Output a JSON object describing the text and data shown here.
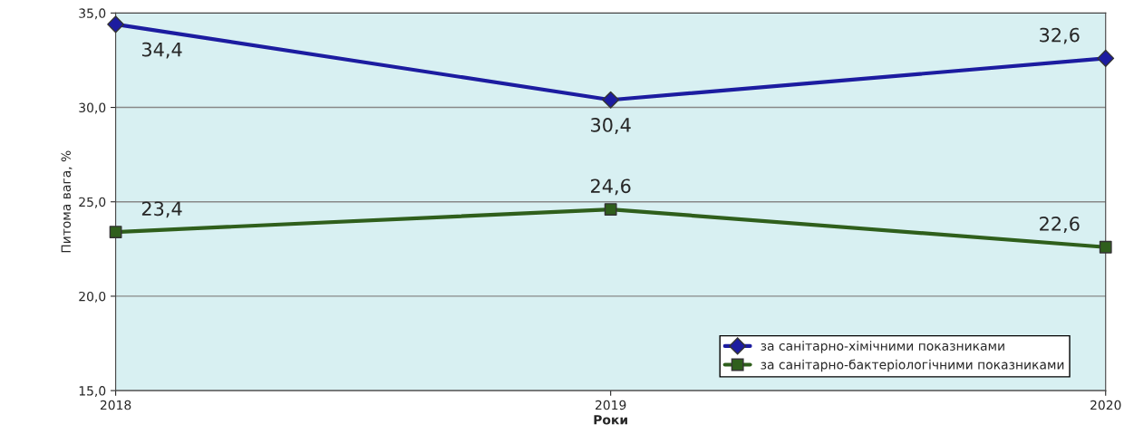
{
  "chart_data": {
    "type": "line",
    "xlabel": "Роки",
    "ylabel": "Питома вага, %",
    "x": [
      2018,
      2019,
      2020
    ],
    "xlim": [
      2018,
      2020
    ],
    "xticks": [
      2018,
      2019,
      2020
    ],
    "series": [
      {
        "name": "за санітарно-хімічними показниками",
        "color": "#1c1ca0",
        "marker": "diamond",
        "values": [
          34.4,
          30.4,
          32.6
        ],
        "value_labels": [
          "34,4",
          "30,4",
          "32,6"
        ]
      },
      {
        "name": "за санітарно-бактеріологічними показниками",
        "color": "#2f5f1c",
        "marker": "square",
        "values": [
          23.4,
          24.6,
          22.6
        ],
        "value_labels": [
          "23,4",
          "24,6",
          "22,6"
        ]
      }
    ],
    "ylim": [
      15,
      35
    ],
    "yticks": [
      {
        "value": 15,
        "label": "15,0"
      },
      {
        "value": 20,
        "label": "20,0"
      },
      {
        "value": 25,
        "label": "25,0"
      },
      {
        "value": 30,
        "label": "30,0"
      },
      {
        "value": 35,
        "label": "35,0"
      }
    ],
    "grid": "y",
    "legend": "bottom right"
  }
}
